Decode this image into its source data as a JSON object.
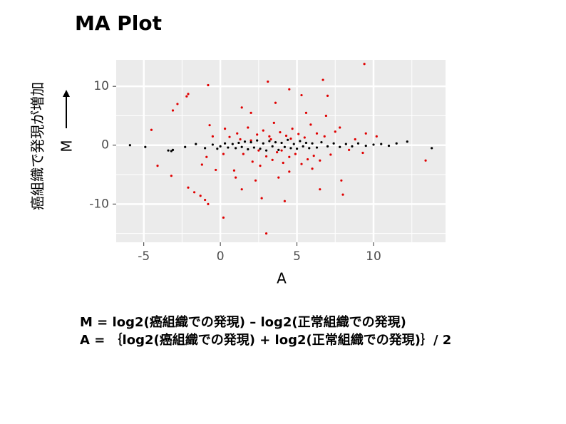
{
  "chart_data": {
    "type": "scatter",
    "title": "MA Plot",
    "xlabel": "A",
    "ylabel": "M",
    "ylabel_note": "癌組織で発現が増加",
    "xlim": [
      -6.8,
      14.7
    ],
    "ylim": [
      -16.5,
      14.5
    ],
    "xticks": [
      -5,
      0,
      5,
      10
    ],
    "yticks": [
      -10,
      0,
      10
    ],
    "xminorticks": [
      -2.5,
      2.5,
      7.5,
      12.5
    ],
    "yminorticks": [
      -15,
      -5,
      5,
      15
    ],
    "grid": true,
    "background": "#ebebeb",
    "series": [
      {
        "color": "#e00000",
        "x": [
          9.4,
          3.1,
          6.7,
          -0.8,
          -2.1,
          -2.2,
          -2.8,
          -3.1,
          -4.5,
          -4.1,
          -3.2,
          -2.1,
          -1.7,
          -1.3,
          -1.0,
          -0.8,
          0.2,
          3.0,
          13.4,
          1.4,
          4.5,
          5.3,
          7.0,
          2.0,
          3.6,
          6.9,
          7.8,
          9.5,
          10.2,
          8.0,
          7.9,
          6.5,
          4.2,
          3.8,
          1.4,
          2.3,
          0.9,
          -0.3,
          -1.2,
          -0.9,
          -0.5,
          -0.7,
          0.3,
          0.6,
          1.1,
          1.5,
          1.8,
          2.1,
          2.4,
          2.6,
          2.8,
          3.0,
          3.2,
          3.4,
          3.5,
          3.7,
          3.9,
          4.1,
          4.3,
          4.5,
          4.7,
          4.9,
          5.1,
          5.3,
          5.5,
          5.7,
          5.9,
          6.1,
          6.3,
          6.5,
          6.8,
          7.2,
          7.5,
          8.4,
          8.8,
          9.3,
          2.0,
          2.5,
          3.3,
          4.0,
          4.6,
          1.3,
          0.2,
          5.6,
          2.7,
          4.5,
          1.0,
          6.0
        ],
        "values": [
          13.8,
          10.8,
          11.1,
          10.2,
          8.7,
          8.3,
          7.0,
          5.9,
          2.6,
          -3.5,
          -5.2,
          -7.2,
          -8.0,
          -8.6,
          -9.3,
          -10.0,
          -12.3,
          -15.0,
          -2.6,
          6.4,
          9.5,
          8.5,
          8.4,
          5.5,
          7.2,
          5.0,
          3.0,
          2.0,
          1.5,
          -8.4,
          -6.0,
          -7.5,
          -9.5,
          -5.5,
          -7.5,
          -6.0,
          -4.3,
          -4.2,
          -3.3,
          -2.0,
          1.5,
          3.4,
          2.8,
          1.4,
          2.0,
          -1.5,
          3.0,
          -2.8,
          1.8,
          -3.5,
          2.5,
          -1.9,
          1.5,
          -2.5,
          3.8,
          -1.2,
          2.2,
          -3.0,
          1.6,
          -2.0,
          2.8,
          -1.5,
          1.9,
          -3.2,
          1.3,
          -2.4,
          3.5,
          -1.8,
          2.0,
          -2.6,
          1.5,
          -1.6,
          2.3,
          -0.8,
          1.0,
          -1.3,
          0.8,
          -0.9,
          1.0,
          -0.9,
          1.1,
          1.0,
          -1.5,
          5.5,
          -9.0,
          -4.5,
          -5.5,
          -4.0
        ]
      },
      {
        "color": "#000000",
        "x": [
          -5.9,
          -4.9,
          -3.4,
          -3.2,
          -3.1,
          -2.3,
          -1.6,
          -1.0,
          -0.5,
          -0.2,
          0.0,
          0.3,
          0.5,
          0.8,
          1.0,
          1.2,
          1.4,
          1.6,
          1.8,
          2.0,
          2.2,
          2.4,
          2.6,
          2.8,
          3.0,
          3.2,
          3.4,
          3.6,
          3.8,
          4.0,
          4.2,
          4.4,
          4.6,
          4.8,
          5.0,
          5.2,
          5.4,
          5.6,
          5.8,
          6.0,
          6.3,
          6.6,
          7.0,
          7.4,
          7.8,
          8.2,
          8.6,
          9.0,
          9.5,
          10.0,
          10.5,
          11.0,
          11.5,
          12.2,
          13.8
        ],
        "values": [
          0,
          -0.3,
          -0.9,
          -1,
          -0.8,
          -0.3,
          0.2,
          -0.5,
          0.1,
          -0.6,
          -0.2,
          0.3,
          -0.4,
          0.2,
          -0.5,
          0.4,
          -0.3,
          0.6,
          -0.7,
          0.5,
          -0.4,
          0.8,
          -0.6,
          0.3,
          -0.9,
          0.7,
          -0.2,
          0.5,
          -0.8,
          0.4,
          -0.3,
          0.9,
          -0.5,
          0.2,
          -0.6,
          0.7,
          -0.2,
          0.4,
          -0.5,
          0.3,
          -0.4,
          0.5,
          -0.2,
          0.3,
          -0.3,
          0.2,
          -0.2,
          0.3,
          -0.1,
          0.1,
          0.2,
          -0.1,
          0.3,
          0.6,
          -0.5
        ]
      }
    ],
    "notes": [
      "M = log2(癌組織での発現) – log2(正常組織での発現)",
      "A = ｛log2(癌組織での発現) + log2(正常組織での発現)｝/ 2"
    ]
  }
}
